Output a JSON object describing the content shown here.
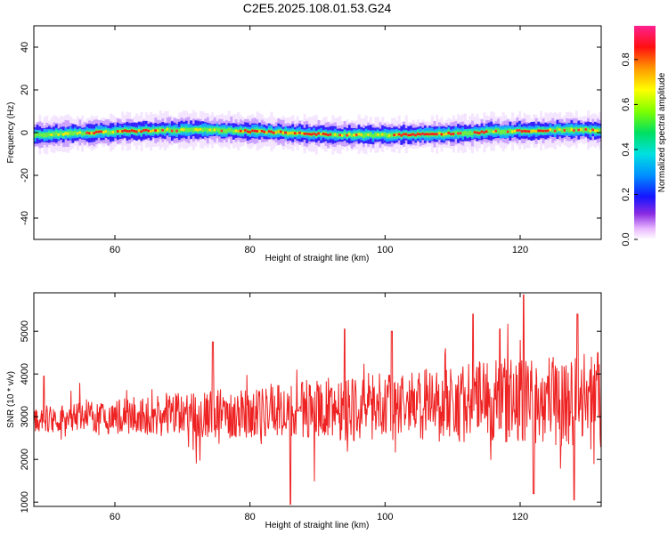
{
  "title": "C2E5.2025.108.01.53.G24",
  "chart_data": [
    {
      "type": "heatmap",
      "xlabel": "Height of straight line (km)",
      "ylabel": "Frequency (Hz)",
      "xlim": [
        48,
        132
      ],
      "ylim": [
        -50,
        50
      ],
      "xticks": [
        "60",
        "80",
        "100",
        "120"
      ],
      "xtick_values": [
        60,
        80,
        100,
        120
      ],
      "yticks": [
        "40",
        "20",
        "0",
        "-20",
        "-40"
      ],
      "ytick_values": [
        40,
        20,
        0,
        -20,
        -40
      ],
      "colorbar": {
        "label": "Normalized spectral amplitude",
        "ticks": [
          "0.0",
          "0.2",
          "0.4",
          "0.6",
          "0.8"
        ],
        "tick_values": [
          0.0,
          0.2,
          0.4,
          0.6,
          0.8
        ],
        "range": [
          0,
          0.95
        ]
      },
      "band_center_hz": 0,
      "band_halfwidth_hz": 4,
      "peak_segments_km": [
        [
          56,
          58
        ],
        [
          60,
          66
        ],
        [
          78,
          92
        ],
        [
          101,
          110
        ],
        [
          113,
          115
        ],
        [
          120,
          124
        ]
      ]
    },
    {
      "type": "line",
      "xlabel": "Height of straight line (km)",
      "ylabel": "SNR (10 * v/v)",
      "xlim": [
        48,
        132
      ],
      "ylim": [
        900,
        5900
      ],
      "xticks": [
        "60",
        "80",
        "100",
        "120"
      ],
      "xtick_values": [
        60,
        80,
        100,
        120
      ],
      "yticks": [
        "5000",
        "4000",
        "3000",
        "2000",
        "1000"
      ],
      "ytick_values": [
        5000,
        4000,
        3000,
        2000,
        1000
      ],
      "color": "#ee2222",
      "trend": [
        [
          48,
          2950
        ],
        [
          60,
          3000
        ],
        [
          80,
          3100
        ],
        [
          100,
          3250
        ],
        [
          120,
          3400
        ],
        [
          132,
          3350
        ]
      ],
      "spikes": [
        [
          49.5,
          3950
        ],
        [
          74.5,
          4750
        ],
        [
          86,
          950
        ],
        [
          94,
          5050
        ],
        [
          101,
          5000
        ],
        [
          113,
          5400
        ],
        [
          117,
          5050
        ],
        [
          120.5,
          5850
        ],
        [
          122,
          1200
        ],
        [
          128.5,
          5400
        ],
        [
          128,
          1050
        ],
        [
          131.5,
          4500
        ]
      ]
    }
  ]
}
